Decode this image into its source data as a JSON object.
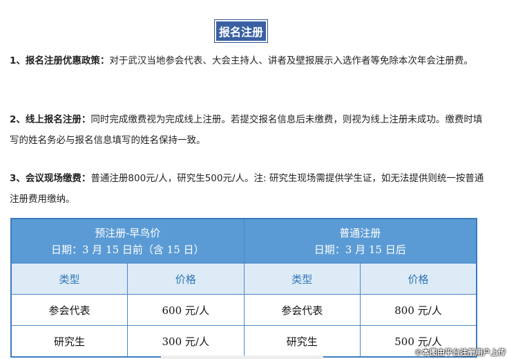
{
  "title": "报名注册",
  "paragraphs": [
    {
      "label": "1、报名注册优惠政策：",
      "text": "对于武汉当地参会代表、大会主持人、讲者及壁报展示入选作者等免除本次年会注册费。"
    },
    {
      "label": "2、线上报名注册：",
      "text": "同时完成缴费视为完成线上注册。若提交报名信息后未缴费，则视为线上注册未成功。缴费时填写的姓名务必与报名信息填写的姓名保持一致。"
    },
    {
      "label": "3、会议现场缴费：",
      "text": "普通注册800元/人，研究生500元/人。注: 研究生现场需提供学生证，如无法提供则统一按普通注册费用缴纳。"
    }
  ],
  "table": {
    "groups": [
      {
        "name": "预注册-早鸟价",
        "date": "日期：3 月 15 日前（含 15 日）"
      },
      {
        "name": "普通注册",
        "date": "日期：3 月 15 日后"
      }
    ],
    "subheaders": [
      "类型",
      "价格",
      "类型",
      "价格"
    ],
    "rows": [
      [
        "参会代表",
        "600 元/人",
        "参会代表",
        "800 元/人"
      ],
      [
        "研究生",
        "300 元/人",
        "研究生",
        "500 元/人"
      ]
    ]
  },
  "watermark": "©本图由平台注册用户上传"
}
